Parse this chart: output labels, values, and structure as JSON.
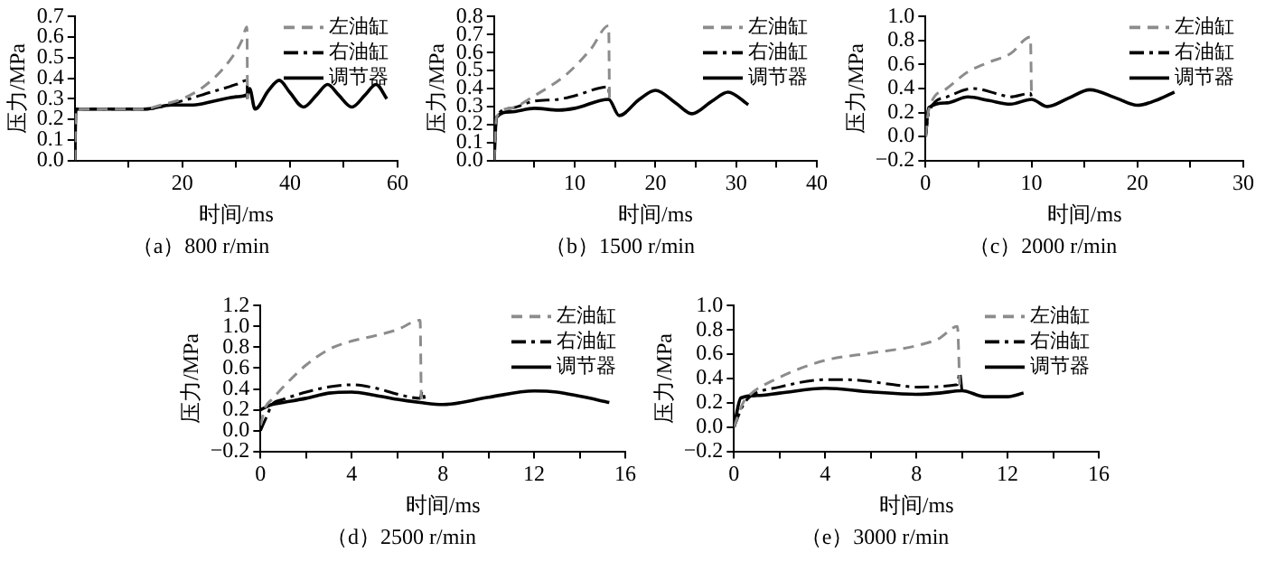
{
  "chart_data": [
    {
      "type": "line",
      "title": "（a）800 r/min",
      "xlabel": "时间/ms",
      "ylabel": "压力/MPa",
      "xlim": [
        0,
        60
      ],
      "xticks": [
        {
          "value": 10,
          "label": null
        },
        20,
        {
          "value": 30,
          "label": null
        },
        40,
        {
          "value": 50,
          "label": null
        },
        60
      ],
      "ylim": [
        0,
        0.7
      ],
      "yticks": [
        {
          "value": 0,
          "label": "0.0"
        },
        0.1,
        0.2,
        0.3,
        0.4,
        0.5,
        0.6,
        0.7
      ],
      "grid": false,
      "legend": "top right",
      "series": [
        {
          "name": "左油缸",
          "color": "#8c8c8c",
          "line_style": "dashed",
          "x": [
            0,
            0.2,
            13,
            16,
            20,
            24,
            28,
            31,
            32,
            32.1
          ],
          "values": [
            0,
            0.25,
            0.25,
            0.27,
            0.3,
            0.36,
            0.46,
            0.58,
            0.65,
            0.3
          ]
        },
        {
          "name": "右油缸",
          "color": "#000000",
          "line_style": "dashdot",
          "x": [
            0,
            0.2,
            13,
            20,
            25,
            30,
            32,
            32.1
          ],
          "values": [
            0,
            0.25,
            0.25,
            0.29,
            0.33,
            0.37,
            0.39,
            0.3
          ]
        },
        {
          "name": "调节器",
          "color": "#000000",
          "line_style": "solid",
          "x": [
            0,
            0.2,
            13,
            18,
            22,
            26,
            30,
            32,
            32.5,
            33.5,
            36,
            38,
            40,
            42.5,
            45,
            47,
            49,
            51.5,
            54,
            56,
            58
          ],
          "values": [
            0,
            0.25,
            0.25,
            0.27,
            0.27,
            0.29,
            0.31,
            0.32,
            0.35,
            0.25,
            0.34,
            0.39,
            0.33,
            0.26,
            0.32,
            0.37,
            0.32,
            0.26,
            0.32,
            0.37,
            0.3
          ]
        }
      ]
    },
    {
      "type": "line",
      "title": "（b）1500 r/min",
      "xlabel": "时间/ms",
      "ylabel": "压力/MPa",
      "xlim": [
        0,
        40
      ],
      "xticks": [
        {
          "value": 5,
          "label": null
        },
        10,
        {
          "value": 15,
          "label": null
        },
        20,
        {
          "value": 25,
          "label": null
        },
        30,
        {
          "value": 35,
          "label": null
        },
        40
      ],
      "ylim": [
        0,
        0.8
      ],
      "yticks": [
        {
          "value": 0,
          "label": "0.0"
        },
        0.1,
        0.2,
        0.3,
        0.4,
        0.5,
        0.6,
        0.7,
        0.8
      ],
      "grid": false,
      "legend": "top right",
      "series": [
        {
          "name": "左油缸",
          "color": "#8c8c8c",
          "line_style": "dashed",
          "x": [
            0,
            0.3,
            2,
            5,
            9,
            12,
            14.2,
            14.3
          ],
          "values": [
            0,
            0.24,
            0.29,
            0.36,
            0.48,
            0.62,
            0.75,
            0.35
          ]
        },
        {
          "name": "右油缸",
          "color": "#000000",
          "line_style": "dashdot",
          "x": [
            0,
            0.3,
            2,
            5,
            8,
            10,
            14.2,
            14.3
          ],
          "values": [
            0,
            0.24,
            0.29,
            0.33,
            0.34,
            0.36,
            0.41,
            0.33
          ]
        },
        {
          "name": "调节器",
          "color": "#000000",
          "line_style": "solid",
          "x": [
            0,
            0.3,
            2,
            5,
            8,
            10,
            14.2,
            15.5,
            18,
            20,
            22.5,
            24.5,
            27,
            29,
            31.5
          ],
          "values": [
            0,
            0.24,
            0.27,
            0.29,
            0.28,
            0.29,
            0.34,
            0.25,
            0.34,
            0.39,
            0.32,
            0.26,
            0.33,
            0.38,
            0.31
          ]
        }
      ]
    },
    {
      "type": "line",
      "title": "（c）2000 r/min",
      "xlabel": "时间/ms",
      "ylabel": "压力/MPa",
      "xlim": [
        0,
        30
      ],
      "xticks": [
        0,
        {
          "value": 5,
          "label": null
        },
        10,
        {
          "value": 15,
          "label": null
        },
        20,
        {
          "value": 25,
          "label": null
        },
        30
      ],
      "ylim": [
        -0.2,
        1.0
      ],
      "yticks": [
        {
          "value": -0.2,
          "label": "−0.2"
        },
        {
          "value": 0,
          "label": "0.0"
        },
        0.2,
        0.4,
        0.6,
        0.8,
        {
          "value": 1,
          "label": "1.0"
        }
      ],
      "grid": false,
      "legend": "top right",
      "series": [
        {
          "name": "左油缸",
          "color": "#8c8c8c",
          "line_style": "dashed",
          "x": [
            0,
            0.3,
            2,
            4,
            6,
            8,
            9.9,
            10
          ],
          "values": [
            0,
            0.22,
            0.4,
            0.54,
            0.62,
            0.69,
            0.83,
            0.35
          ]
        },
        {
          "name": "右油缸",
          "color": "#000000",
          "line_style": "dashdot",
          "x": [
            0,
            0.3,
            2,
            4.5,
            7,
            8,
            9.9,
            10
          ],
          "values": [
            0,
            0.2,
            0.33,
            0.4,
            0.35,
            0.33,
            0.36,
            0.33
          ]
        },
        {
          "name": "调节器",
          "color": "#000000",
          "line_style": "solid",
          "x": [
            0,
            0.3,
            2,
            4,
            6,
            8,
            10,
            11.5,
            13.5,
            15.5,
            18,
            20,
            22,
            23.5
          ],
          "values": [
            0,
            0.24,
            0.28,
            0.33,
            0.3,
            0.27,
            0.31,
            0.25,
            0.32,
            0.39,
            0.32,
            0.26,
            0.31,
            0.37
          ]
        }
      ]
    },
    {
      "type": "line",
      "title": "（d）2500 r/min",
      "xlabel": "时间/ms",
      "ylabel": "压力/MPa",
      "xlim": [
        0,
        16
      ],
      "xticks": [
        0,
        {
          "value": 2,
          "label": null
        },
        4,
        {
          "value": 6,
          "label": null
        },
        8,
        {
          "value": 10,
          "label": null
        },
        12,
        {
          "value": 14,
          "label": null
        },
        16
      ],
      "ylim": [
        -0.2,
        1.2
      ],
      "yticks": [
        {
          "value": -0.2,
          "label": "−0.2"
        },
        {
          "value": 0,
          "label": "0.0"
        },
        0.2,
        0.4,
        0.6,
        0.8,
        {
          "value": 1,
          "label": "1.0"
        },
        1.2
      ],
      "grid": false,
      "legend": "top right",
      "series": [
        {
          "name": "左油缸",
          "color": "#8c8c8c",
          "line_style": "dashed",
          "x": [
            0,
            0.2,
            0.5,
            1,
            2,
            3,
            4,
            5,
            6,
            7,
            7.05
          ],
          "values": [
            0.05,
            0.22,
            0.3,
            0.42,
            0.63,
            0.78,
            0.86,
            0.91,
            0.97,
            1.06,
            0.3
          ]
        },
        {
          "name": "右油缸",
          "color": "#000000",
          "line_style": "dashdot",
          "x": [
            0,
            0.3,
            0.5,
            1,
            2,
            3,
            4,
            5,
            6,
            7,
            7.1,
            7.2
          ],
          "values": [
            0,
            0.15,
            0.25,
            0.3,
            0.37,
            0.42,
            0.44,
            0.41,
            0.35,
            0.31,
            0.38,
            0.3
          ]
        },
        {
          "name": "调节器",
          "color": "#000000",
          "line_style": "solid",
          "x": [
            0,
            0.5,
            1,
            2,
            3,
            4,
            5,
            6,
            7,
            8,
            10,
            12,
            13,
            14,
            15.3
          ],
          "values": [
            0.2,
            0.25,
            0.27,
            0.31,
            0.36,
            0.37,
            0.34,
            0.3,
            0.27,
            0.25,
            0.32,
            0.38,
            0.37,
            0.33,
            0.27
          ]
        }
      ]
    },
    {
      "type": "line",
      "title": "（e）3000 r/min",
      "xlabel": "时间/ms",
      "ylabel": "压力/MPa",
      "xlim": [
        0,
        16
      ],
      "xticks": [
        0,
        {
          "value": 2,
          "label": null
        },
        4,
        {
          "value": 6,
          "label": null
        },
        8,
        {
          "value": 10,
          "label": null
        },
        12,
        {
          "value": 14,
          "label": null
        },
        16
      ],
      "ylim": [
        -0.2,
        1.0
      ],
      "yticks": [
        {
          "value": -0.2,
          "label": "−0.2"
        },
        {
          "value": 0,
          "label": "0.0"
        },
        0.2,
        0.4,
        0.6,
        0.8,
        {
          "value": 1,
          "label": "1.0"
        }
      ],
      "grid": false,
      "legend": "top right",
      "series": [
        {
          "name": "左油缸",
          "color": "#8c8c8c",
          "line_style": "dashed",
          "x": [
            0,
            0.4,
            0.6,
            2,
            4,
            6,
            8,
            9,
            9.8,
            9.9
          ],
          "values": [
            0,
            0.2,
            0.25,
            0.41,
            0.55,
            0.61,
            0.67,
            0.73,
            0.83,
            0.35
          ]
        },
        {
          "name": "右油缸",
          "color": "#000000",
          "line_style": "dashdot",
          "x": [
            0,
            0.4,
            0.7,
            2,
            4,
            5,
            7,
            8,
            9.8,
            9.9,
            10
          ],
          "values": [
            0,
            0.18,
            0.25,
            0.33,
            0.39,
            0.39,
            0.35,
            0.33,
            0.35,
            0.45,
            0.3
          ]
        },
        {
          "name": "调节器",
          "color": "#000000",
          "line_style": "solid",
          "x": [
            0,
            0.3,
            1,
            2,
            4,
            6,
            8,
            9,
            10,
            11,
            12,
            12.7
          ],
          "values": [
            0,
            0.24,
            0.26,
            0.28,
            0.32,
            0.29,
            0.27,
            0.28,
            0.3,
            0.25,
            0.25,
            0.28
          ]
        }
      ]
    }
  ]
}
